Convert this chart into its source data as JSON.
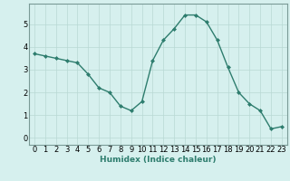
{
  "x": [
    0,
    1,
    2,
    3,
    4,
    5,
    6,
    7,
    8,
    9,
    10,
    11,
    12,
    13,
    14,
    15,
    16,
    17,
    18,
    19,
    20,
    21,
    22,
    23
  ],
  "y": [
    3.7,
    3.6,
    3.5,
    3.4,
    3.3,
    2.8,
    2.2,
    2.0,
    1.4,
    1.2,
    1.6,
    3.4,
    4.3,
    4.8,
    5.4,
    5.4,
    5.1,
    4.3,
    3.1,
    2.0,
    1.5,
    1.2,
    0.4,
    0.5
  ],
  "line_color": "#2e7d6e",
  "marker": "D",
  "marker_size": 2.0,
  "bg_color": "#d6f0ee",
  "grid_color": "#b8d8d4",
  "xlabel": "Humidex (Indice chaleur)",
  "xlim": [
    -0.5,
    23.5
  ],
  "ylim": [
    -0.3,
    5.9
  ],
  "yticks": [
    0,
    1,
    2,
    3,
    4,
    5
  ],
  "xticks": [
    0,
    1,
    2,
    3,
    4,
    5,
    6,
    7,
    8,
    9,
    10,
    11,
    12,
    13,
    14,
    15,
    16,
    17,
    18,
    19,
    20,
    21,
    22,
    23
  ],
  "xlabel_fontsize": 6.5,
  "tick_fontsize": 6.0,
  "spine_color": "#7a9a96",
  "line_width": 1.0
}
